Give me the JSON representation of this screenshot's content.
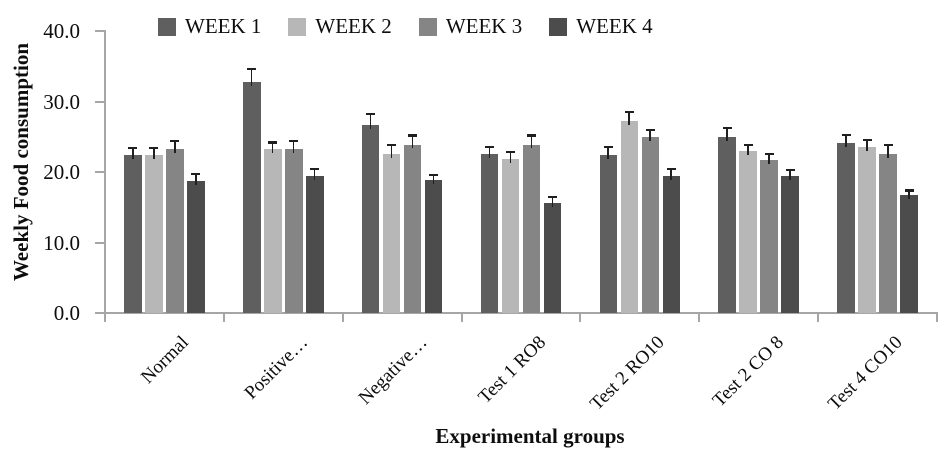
{
  "chart_data": {
    "type": "bar",
    "title": "",
    "xlabel": "Experimental groups",
    "ylabel": "Weekly Food consumption",
    "ylim": [
      0,
      40
    ],
    "ytick_step": 10,
    "ytick_labels": [
      "40.0",
      "30.0",
      "20.0",
      "10.0",
      "0.0"
    ],
    "grid": false,
    "legend_position": "top",
    "categories": [
      "Normal",
      "Positive…",
      "Negative…",
      "Test 1 RO8",
      "Test 2 RO10",
      "Test 2 CO 8",
      "Test 4 CO10"
    ],
    "series": [
      {
        "name": "WEEK 1",
        "color": "#5f5f5f",
        "values": [
          22.4,
          32.8,
          26.6,
          22.6,
          22.4,
          25.0,
          24.1
        ],
        "errors": [
          1.0,
          1.8,
          1.6,
          1.0,
          1.2,
          1.3,
          1.2
        ]
      },
      {
        "name": "WEEK 2",
        "color": "#b7b7b7",
        "values": [
          22.4,
          23.2,
          22.6,
          21.9,
          27.2,
          23.0,
          23.5
        ],
        "errors": [
          1.0,
          1.0,
          1.2,
          0.9,
          1.3,
          0.8,
          1.0
        ]
      },
      {
        "name": "WEEK 3",
        "color": "#858585",
        "values": [
          23.2,
          23.2,
          23.9,
          23.9,
          25.0,
          21.7,
          22.5
        ],
        "errors": [
          1.2,
          1.2,
          1.3,
          1.3,
          1.0,
          0.9,
          1.3
        ]
      },
      {
        "name": "WEEK 4",
        "color": "#4c4c4c",
        "values": [
          18.7,
          19.4,
          18.8,
          15.6,
          19.4,
          19.4,
          16.7
        ],
        "errors": [
          1.0,
          1.0,
          0.8,
          0.9,
          1.0,
          0.9,
          0.7
        ]
      }
    ]
  },
  "colors": {
    "axis": "#a6a6a6",
    "error_bar": "#1f1f1f",
    "text": "#0d0d0d"
  },
  "layout_labels": {
    "y_axis_title": "Weekly Food consumption",
    "x_axis_title": "Experimental groups"
  }
}
